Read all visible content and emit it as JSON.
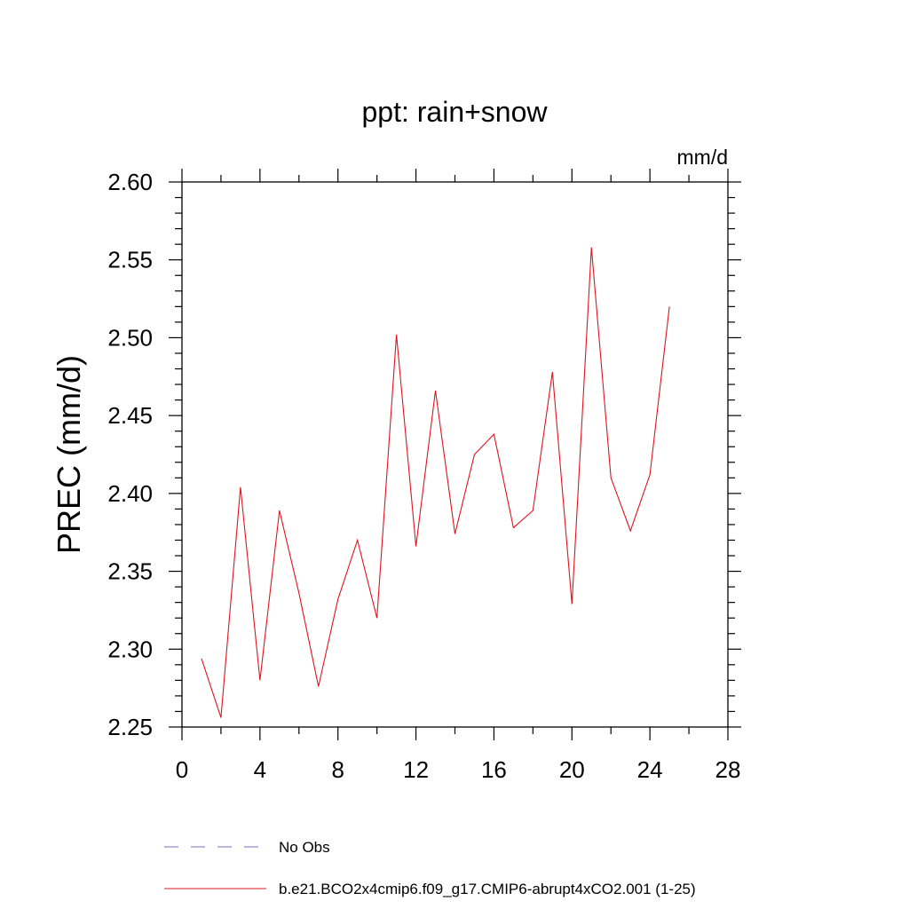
{
  "chart_data": {
    "type": "line",
    "title": "ppt: rain+snow",
    "units": "mm/d",
    "xlabel": "",
    "ylabel": "PREC  (mm/d)",
    "xlim": [
      0,
      28
    ],
    "ylim": [
      2.25,
      2.6
    ],
    "x_major_ticks": [
      0,
      4,
      8,
      12,
      16,
      20,
      24,
      28
    ],
    "y_major_ticks": [
      2.25,
      2.3,
      2.35,
      2.4,
      2.45,
      2.5,
      2.55,
      2.6
    ],
    "x_tick_labels": [
      "0",
      "4",
      "8",
      "12",
      "16",
      "20",
      "24",
      "28"
    ],
    "y_tick_labels": [
      "2.25",
      "2.30",
      "2.35",
      "2.40",
      "2.45",
      "2.50",
      "2.55",
      "2.60"
    ],
    "grid": false,
    "legend_position": "bottom",
    "series": [
      {
        "name": "No Obs",
        "color": "#7b68c0",
        "style": "dashed",
        "x": [],
        "values": []
      },
      {
        "name": "b.e21.BCO2x4cmip6.f09_g17.CMIP6-abrupt4xCO2.001 (1-25)",
        "color": "#e0141e",
        "style": "solid",
        "x": [
          1,
          2,
          3,
          4,
          5,
          6,
          7,
          8,
          9,
          10,
          11,
          12,
          13,
          14,
          15,
          16,
          17,
          18,
          19,
          20,
          21,
          22,
          23,
          24,
          25
        ],
        "values": [
          2.294,
          2.256,
          2.404,
          2.28,
          2.389,
          2.336,
          2.276,
          2.332,
          2.37,
          2.32,
          2.502,
          2.366,
          2.466,
          2.374,
          2.425,
          2.438,
          2.378,
          2.389,
          2.478,
          2.329,
          2.558,
          2.41,
          2.376,
          2.412,
          2.52
        ]
      }
    ]
  }
}
